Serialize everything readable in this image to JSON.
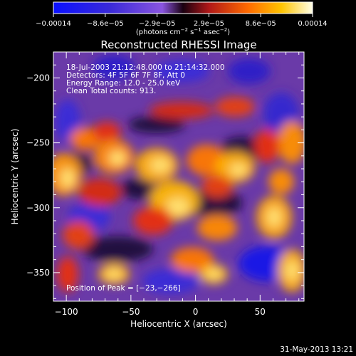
{
  "colorbar": {
    "ticks": [
      "−0.00014",
      "−8.6e−05",
      "−2.9e−05",
      "2.9e−05",
      "8.6e−05",
      "0.00014"
    ],
    "unit_main": "(photons cm",
    "unit_exp1": "−2",
    "unit_mid": " s",
    "unit_exp2": "−1",
    "unit_mid2": " asec",
    "unit_exp3": "−2",
    "unit_end": ")"
  },
  "plot": {
    "title": "Reconstructed RHESSI Image",
    "annotations": [
      "18-Jul-2003 21:12:48.000 to 21:14:32.000",
      "Detectors: 4F 5F 6F 7F 8F, Att 0",
      "Energy Range: 12.0 - 25.0 keV",
      "Clean     Total counts: 913."
    ],
    "peak_label": "Position of Peak = [−23,−266]",
    "x_axis": {
      "label": "Heliocentric X (arcsec)",
      "ticks": [
        {
          "v": -100,
          "t": "−100"
        },
        {
          "v": -50,
          "t": "−50"
        },
        {
          "v": 0,
          "t": "0"
        },
        {
          "v": 50,
          "t": "50"
        }
      ],
      "range": [
        -110,
        84
      ]
    },
    "y_axis": {
      "label": "Heliocentric Y (arcsec)",
      "ticks": [
        {
          "v": -200,
          "t": "−200"
        },
        {
          "v": -250,
          "t": "−250"
        },
        {
          "v": -300,
          "t": "−300"
        },
        {
          "v": -350,
          "t": "−350"
        }
      ],
      "range": [
        -372,
        -180
      ]
    }
  },
  "footer": {
    "timestamp": "31-May-2013 13:21"
  }
}
